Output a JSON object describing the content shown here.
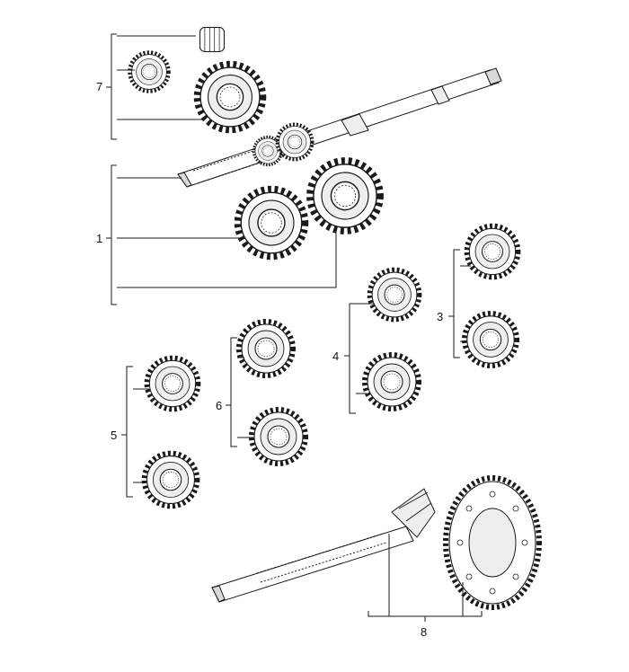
{
  "diagram": {
    "callouts": [
      {
        "id": "c7",
        "label": "7"
      },
      {
        "id": "c1",
        "label": "1"
      },
      {
        "id": "c4",
        "label": "4"
      },
      {
        "id": "c3",
        "label": "3"
      },
      {
        "id": "c6",
        "label": "6"
      },
      {
        "id": "c5",
        "label": "5"
      },
      {
        "id": "c8",
        "label": "8"
      }
    ],
    "colors": {
      "line": "#1a1a1a",
      "fill": "#ffffff",
      "shade": "#d9d9d9"
    }
  }
}
